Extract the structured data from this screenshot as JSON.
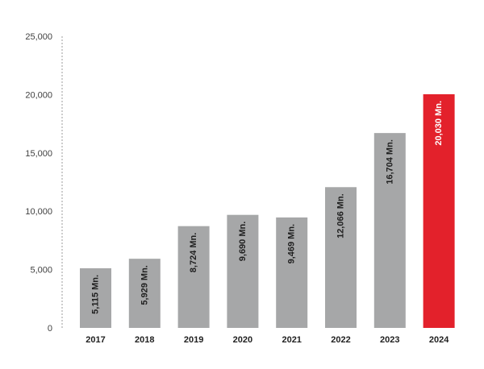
{
  "chart_data": {
    "type": "bar",
    "title": "",
    "xlabel": "",
    "ylabel": "",
    "categories": [
      "2017",
      "2018",
      "2019",
      "2020",
      "2021",
      "2022",
      "2023",
      "2024"
    ],
    "values": [
      5115,
      5929,
      8724,
      9690,
      9469,
      12066,
      16704,
      20030
    ],
    "data_labels": [
      "5,115 Mn.",
      "5,929 Mn.",
      "8,724 Mn.",
      "9,690 Mn.",
      "9,469 Mn.",
      "12,066 Mn.",
      "16,704 Mn.",
      "20,030 Mn."
    ],
    "ylim": [
      0,
      25000
    ],
    "y_ticks": [
      0,
      5000,
      10000,
      15000,
      20000,
      25000
    ],
    "y_tick_labels": [
      "0",
      "5,000",
      "10,000",
      "15,000",
      "20,000",
      "25,000"
    ],
    "grid": false,
    "legend": "none",
    "colors": {
      "default_bar": "#a6a7a8",
      "highlight_bar": "#e3212b",
      "bar_label_default": "#1f1f1f",
      "bar_label_highlight": "#ffffff",
      "axis": "#9b9b9b"
    },
    "highlight_category": "2024"
  }
}
